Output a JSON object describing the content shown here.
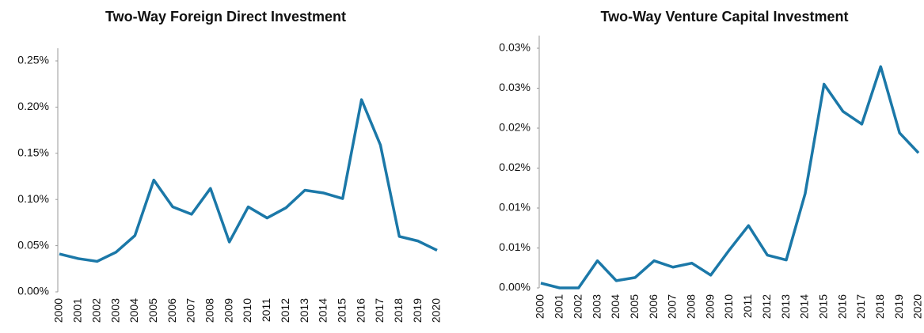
{
  "chart_data": [
    {
      "type": "line",
      "title": "Two-Way Foreign Direct Investment",
      "categories": [
        "2000",
        "2001",
        "2002",
        "2003",
        "2004",
        "2005",
        "2006",
        "2007",
        "2008",
        "2009",
        "2010",
        "2011",
        "2012",
        "2013",
        "2014",
        "2015",
        "2016",
        "2017",
        "2018",
        "2019",
        "2020"
      ],
      "series": [
        {
          "color": "#1b78a8",
          "values": [
            0.041,
            0.036,
            0.033,
            0.043,
            0.061,
            0.121,
            0.092,
            0.084,
            0.112,
            0.054,
            0.092,
            0.08,
            0.091,
            0.11,
            0.107,
            0.101,
            0.208,
            0.159,
            0.06,
            0.055,
            0.045
          ]
        }
      ],
      "ylim": [
        0,
        0.25
      ],
      "yticks": [
        {
          "value": 0,
          "label": "0.00%"
        },
        {
          "value": 0.05,
          "label": "0.05%"
        },
        {
          "value": 0.1,
          "label": "0.10%"
        },
        {
          "value": 0.15,
          "label": "0.15%"
        },
        {
          "value": 0.2,
          "label": "0.20%"
        },
        {
          "value": 0.25,
          "label": "0.25%"
        }
      ]
    },
    {
      "type": "line",
      "title": "Two-Way Venture Capital Investment",
      "categories": [
        "2000",
        "2001",
        "2002",
        "2003",
        "2004",
        "2005",
        "2006",
        "2007",
        "2008",
        "2009",
        "2010",
        "2011",
        "2012",
        "2013",
        "2014",
        "2015",
        "2016",
        "2017",
        "2018",
        "2019",
        "2020"
      ],
      "series": [
        {
          "color": "#1b78a8",
          "values": [
            0.0006,
            0,
            0,
            0.0034,
            0.0009,
            0.0013,
            0.0034,
            0.0026,
            0.0031,
            0.0016,
            0.0048,
            0.0078,
            0.0041,
            0.0035,
            0.0118,
            0.0255,
            0.0221,
            0.0205,
            0.0277,
            0.0194,
            0.0169
          ]
        }
      ],
      "ylim": [
        0,
        0.03
      ],
      "yticks": [
        {
          "value": 0,
          "label": "0.00%"
        },
        {
          "value": 0.005,
          "label": "0.01%"
        },
        {
          "value": 0.01,
          "label": "0.01%"
        },
        {
          "value": 0.015,
          "label": "0.02%"
        },
        {
          "value": 0.02,
          "label": "0.02%"
        },
        {
          "value": 0.025,
          "label": "0.03%"
        },
        {
          "value": 0.03,
          "label": "0.03%"
        }
      ]
    }
  ]
}
